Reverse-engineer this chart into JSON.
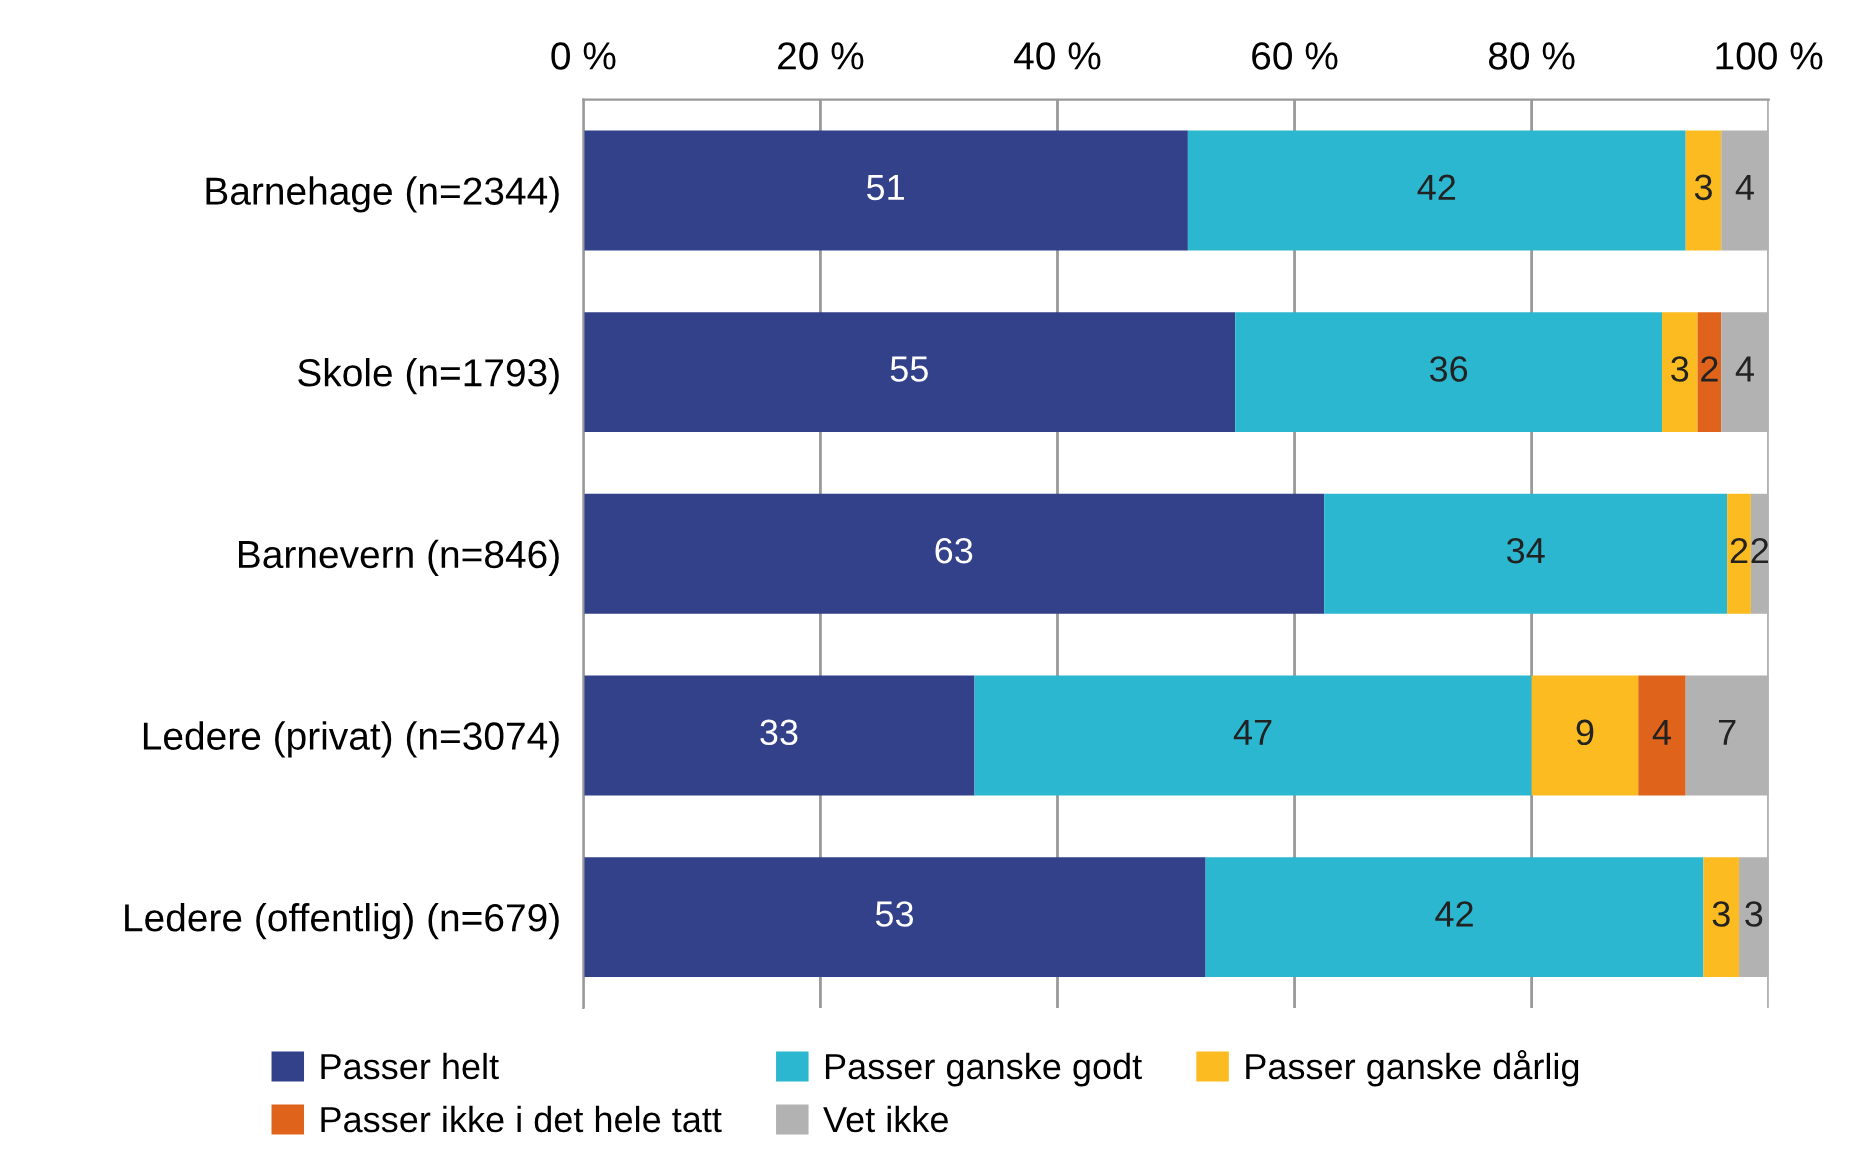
{
  "chart_data": {
    "type": "bar",
    "orientation": "horizontal",
    "stacked": true,
    "data_labels": true,
    "grid": "x",
    "legend": "bottom",
    "categories": [
      "Barnehage (n=2344)",
      "Skole (n=1793)",
      "Barnevern (n=846)",
      "Ledere (privat) (n=3074)",
      "Ledere (offentlig) (n=679)"
    ],
    "xlim": [
      0,
      100
    ],
    "xticks": [
      {
        "value": 0,
        "label": "0 %"
      },
      {
        "value": 20,
        "label": "20 %"
      },
      {
        "value": 40,
        "label": "40 %"
      },
      {
        "value": 60,
        "label": "60 %"
      },
      {
        "value": 80,
        "label": "80 %"
      },
      {
        "value": 100,
        "label": "100 %"
      }
    ],
    "series": [
      {
        "name": "Passer helt",
        "color": "#33418a",
        "values": [
          51,
          55,
          62.5,
          33,
          52.5
        ],
        "value_labels": [
          "51",
          "55",
          "63",
          "33",
          "53"
        ]
      },
      {
        "name": "Passer ganske godt",
        "color": "#2bb7cf",
        "values": [
          42,
          36,
          34,
          47,
          42
        ]
      },
      {
        "name": "Passer ganske dårlig",
        "color": "#fbbb21",
        "values": [
          3,
          3,
          2,
          9,
          3
        ]
      },
      {
        "name": "Passer ikke i det hele tatt",
        "color": "#e0631b",
        "values": [
          null,
          2,
          null,
          4,
          null
        ]
      },
      {
        "name": "Vet ikke",
        "color": "#b2b2b2",
        "values": [
          4,
          4,
          1.5,
          7,
          2.5
        ],
        "value_labels": [
          "4",
          "4",
          "2",
          "7",
          "3"
        ]
      }
    ]
  }
}
